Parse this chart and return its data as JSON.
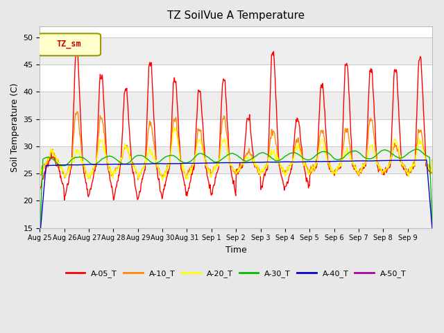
{
  "title": "TZ SoilVue A Temperature",
  "xlabel": "Time",
  "ylabel": "Soil Temperature (C)",
  "ylim": [
    15,
    52
  ],
  "yticks": [
    15,
    20,
    25,
    30,
    35,
    40,
    45,
    50
  ],
  "bg_color": "#ffffff",
  "fig_bg": "#e8e8e8",
  "legend_label": "TZ_sm",
  "series_names": [
    "A-05_T",
    "A-10_T",
    "A-20_T",
    "A-30_T",
    "A-40_T",
    "A-50_T"
  ],
  "series_colors": [
    "#ff0000",
    "#ff8800",
    "#ffff00",
    "#00bb00",
    "#0000cc",
    "#aa00aa"
  ],
  "xtick_labels": [
    "Aug 25",
    "Aug 26",
    "Aug 27",
    "Aug 28",
    "Aug 29",
    "Aug 30",
    "Aug 31",
    "Sep 1",
    "Sep 2",
    "Sep 3",
    "Sep 4",
    "Sep 5",
    "Sep 6",
    "Sep 7",
    "Sep 8",
    "Sep 9"
  ],
  "n_days": 16,
  "pts_per_day": 48
}
